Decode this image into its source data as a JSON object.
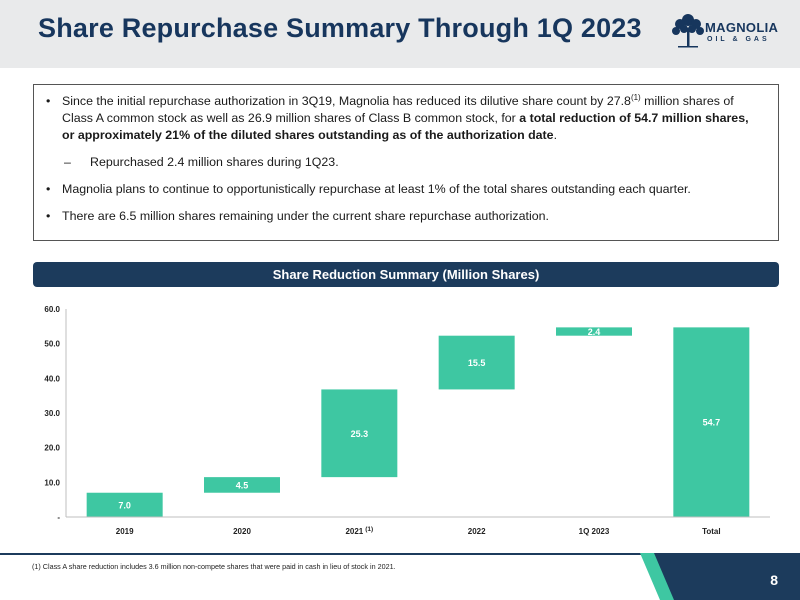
{
  "page": {
    "title": "Share Repurchase Summary Through 1Q 2023",
    "logo_text": "MAGNOLIA",
    "logo_sub": "OIL & GAS",
    "page_number": "8"
  },
  "bullets": {
    "b1_text_a": "Since the initial repurchase authorization in 3Q19, Magnolia has reduced its dilutive share count by 27.8",
    "b1_sup": "(1)",
    "b1_text_b": " million shares of Class A common stock as well as 26.9 million shares of Class B common stock, for ",
    "b1_bold": "a total reduction of 54.7 million shares, or approximately 21% of the diluted shares outstanding as of the authorization date",
    "b1_end": ".",
    "sub1": "Repurchased 2.4 million shares during 1Q23.",
    "b2": "Magnolia plans to continue to opportunistically repurchase at least 1% of the total shares outstanding each quarter.",
    "b3": "There are 6.5 million shares remaining under the current share repurchase authorization."
  },
  "chart_header": "Share Reduction Summary (Million Shares)",
  "chart_data": {
    "type": "bar",
    "subtype": "waterfall",
    "title": "Share Reduction Summary (Million Shares)",
    "categories": [
      "2019",
      "2020",
      "2021",
      "2022",
      "1Q 2023",
      "Total"
    ],
    "category_sups": [
      "",
      "",
      "(1)",
      "",
      "",
      ""
    ],
    "values": [
      7.0,
      4.5,
      25.3,
      15.5,
      2.4,
      54.7
    ],
    "bases": [
      0,
      7.0,
      11.5,
      36.8,
      52.3,
      0
    ],
    "value_labels": [
      "7.0",
      "4.5",
      "25.3",
      "15.5",
      "2.4",
      "54.7"
    ],
    "yticks": [
      0,
      10,
      20,
      30,
      40,
      50,
      60
    ],
    "ytick_labels": [
      "-",
      "10.0",
      "20.0",
      "30.0",
      "40.0",
      "50.0",
      "60.0"
    ],
    "ylim": [
      0,
      60
    ],
    "bar_color": "#3ec7a2",
    "grid": false,
    "legend": "none"
  },
  "footnote": "(1)   Class A share reduction includes 3.6 million non-compete shares that were paid in cash in lieu of stock in 2021.",
  "colors": {
    "navy": "#1c3b5c",
    "teal": "#3ec7a2"
  }
}
